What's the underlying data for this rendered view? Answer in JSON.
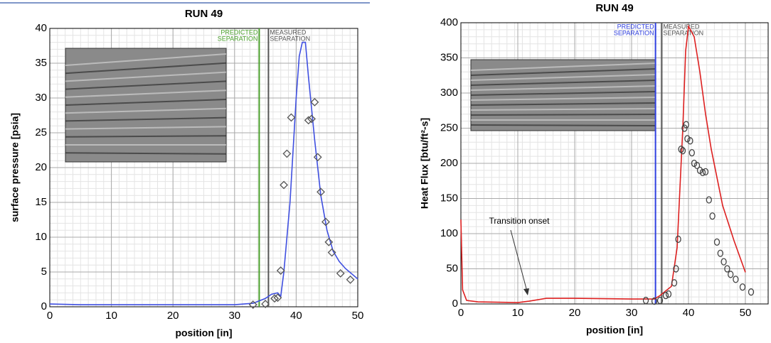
{
  "chart_data": [
    {
      "type": "line",
      "title": "RUN 49",
      "xlabel": "position [in]",
      "ylabel": "surface pressure [psia]",
      "xlim": [
        0,
        50
      ],
      "ylim": [
        0,
        40
      ],
      "xticks": [
        0,
        10,
        20,
        30,
        40,
        50
      ],
      "yticks": [
        0,
        5,
        10,
        15,
        20,
        25,
        30,
        35,
        40
      ],
      "grid": true,
      "vlines": [
        {
          "x": 34,
          "color": "#4aa02c",
          "label": [
            "PREDICTED",
            "SEPARATION"
          ]
        },
        {
          "x": 35.5,
          "color": "#555555",
          "label": [
            "MEASURED",
            "SEPARATION"
          ]
        }
      ],
      "series": [
        {
          "color": "#3f4fe0",
          "x": [
            0,
            5,
            10,
            20,
            30,
            33,
            35,
            36,
            37,
            37.5,
            38,
            39,
            40,
            40.5,
            41,
            41.5,
            42,
            43,
            44,
            45,
            46,
            47,
            48,
            50
          ],
          "values": [
            0.4,
            0.3,
            0.3,
            0.3,
            0.3,
            0.5,
            1.2,
            1.8,
            2,
            1.5,
            5,
            15,
            30,
            36,
            38,
            38,
            33,
            24,
            16,
            11,
            8,
            6.5,
            5.5,
            4
          ]
        },
        {
          "marker": "diamond",
          "color": "#555555",
          "x": [
            33,
            35,
            36.5,
            37,
            37.5,
            38,
            38.5,
            39.2,
            42,
            42.5,
            43,
            43.5,
            44,
            44.8,
            45.3,
            45.8,
            47.2,
            48.8
          ],
          "values": [
            0.3,
            0.4,
            1.2,
            1.3,
            5.2,
            17.5,
            22,
            27.2,
            26.8,
            27,
            29.4,
            21.5,
            16.5,
            12.2,
            9.3,
            7.8,
            4.8,
            3.9
          ]
        }
      ]
    },
    {
      "type": "line",
      "title": "RUN 49",
      "xlabel": "position [in]",
      "ylabel": "Heat Flux [btu/ft²-s]",
      "xlim": [
        0,
        54
      ],
      "ylim": [
        0,
        400
      ],
      "xticks": [
        0,
        10,
        20,
        30,
        40,
        50
      ],
      "yticks": [
        0,
        50,
        100,
        150,
        200,
        250,
        300,
        350,
        400
      ],
      "grid": true,
      "vlines": [
        {
          "x": 34.2,
          "color": "#2f3fe0",
          "label": [
            "PREDICTED",
            "SEPARATION"
          ]
        },
        {
          "x": 35.3,
          "color": "#555555",
          "label": [
            "MEASURED",
            "SEPARATION"
          ]
        }
      ],
      "annotations": [
        "Transition onset"
      ],
      "series": [
        {
          "color": "#dd2020",
          "x": [
            0,
            0.3,
            1,
            3,
            10,
            12,
            15,
            20,
            30,
            34,
            35,
            37,
            38,
            39,
            39.5,
            40,
            41,
            42,
            43,
            44,
            45,
            46,
            48,
            50
          ],
          "values": [
            120,
            20,
            5,
            3,
            2,
            4,
            8,
            8,
            7,
            7,
            12,
            25,
            80,
            250,
            360,
            395,
            380,
            330,
            270,
            220,
            180,
            140,
            90,
            45
          ]
        },
        {
          "marker": "circle",
          "color": "#444444",
          "x": [
            32.5,
            34,
            35,
            36,
            36.5,
            37.5,
            37.8,
            38.2,
            38.7,
            39,
            39.3,
            39.6,
            39.8,
            40.3,
            40.6,
            41,
            41.5,
            42,
            42.5,
            43,
            43.6,
            44.2,
            45,
            45.6,
            46.2,
            46.8,
            47.4,
            48.3,
            49.5,
            51
          ],
          "values": [
            5,
            4,
            5,
            12,
            14,
            30,
            50,
            92,
            220,
            218,
            250,
            255,
            235,
            232,
            215,
            200,
            197,
            190,
            187,
            188,
            148,
            125,
            88,
            72,
            60,
            50,
            42,
            35,
            24,
            17
          ]
        }
      ]
    }
  ]
}
